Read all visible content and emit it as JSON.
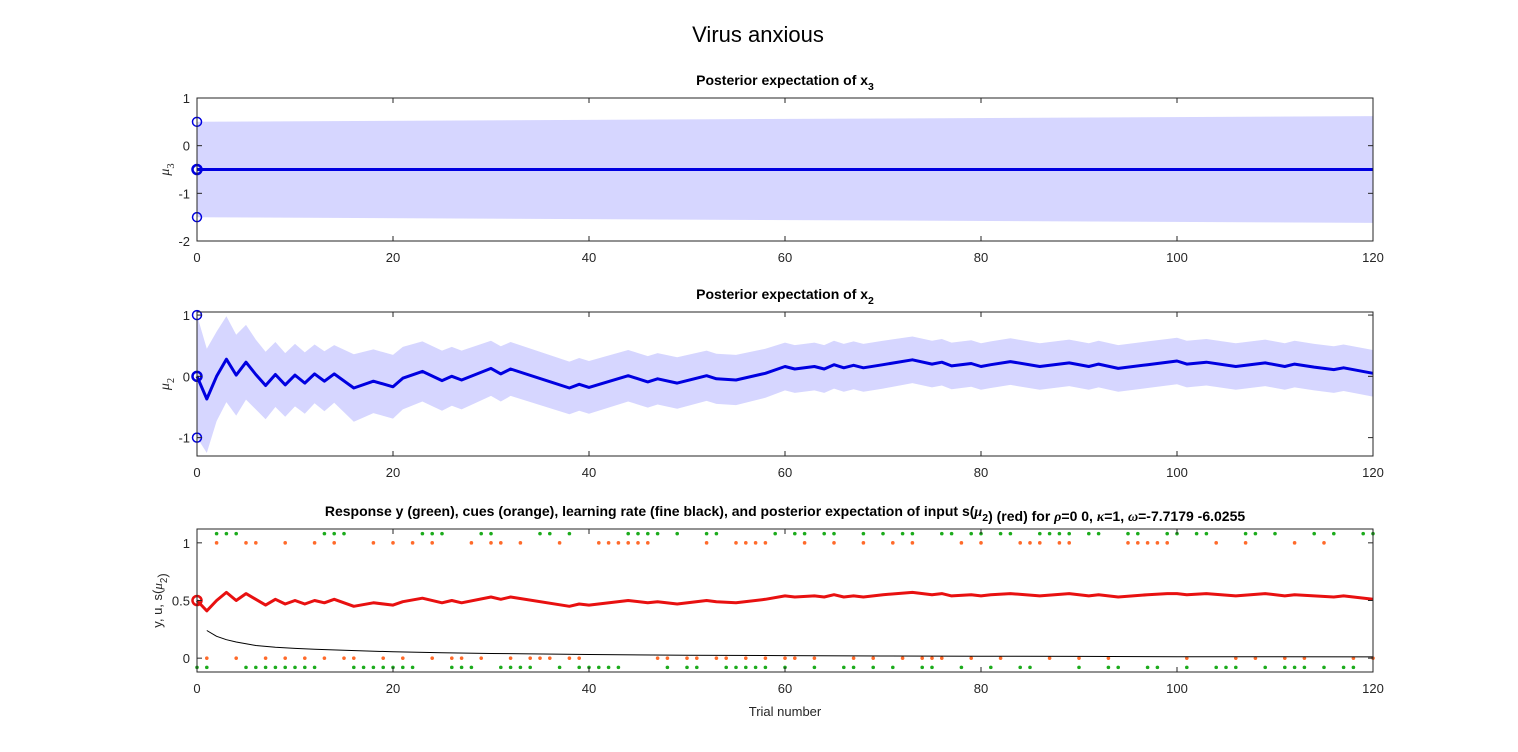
{
  "figure": {
    "title": "Virus anxious",
    "xlabel": "Trial number"
  },
  "chart_data": [
    {
      "type": "line",
      "title_main": "Posterior expectation of x",
      "title_sub": "3",
      "ylabel_main": "μ",
      "ylabel_sub": "3",
      "xlim": [
        0,
        120
      ],
      "ylim": [
        -2,
        1
      ],
      "xticks": [
        0,
        20,
        40,
        60,
        80,
        100,
        120
      ],
      "yticks": [
        1,
        0,
        -1,
        -2
      ],
      "colors": {
        "line": "#0000e0",
        "band": "#d6d6ff"
      },
      "series": [
        {
          "x": [
            0,
            120
          ],
          "values": [
            -0.5,
            -0.5
          ]
        }
      ],
      "band": {
        "x": [
          0,
          120
        ],
        "upper": [
          0.5,
          0.62
        ],
        "lower": [
          -1.5,
          -1.62
        ]
      },
      "prior_markers": [
        0.5,
        -0.5,
        -1.5
      ]
    },
    {
      "type": "line",
      "title_main": "Posterior expectation of x",
      "title_sub": "2",
      "ylabel_main": "μ",
      "ylabel_sub": "2",
      "xlim": [
        0,
        120
      ],
      "ylim": [
        -1.3,
        1.05
      ],
      "xticks": [
        0,
        20,
        40,
        60,
        80,
        100,
        120
      ],
      "yticks": [
        1,
        0,
        -1
      ],
      "colors": {
        "line": "#0000e0",
        "band": "#d6d6ff"
      },
      "series": [
        {
          "x": [
            0,
            1,
            2,
            3,
            4,
            5,
            6,
            7,
            8,
            9,
            10,
            11,
            12,
            13,
            14,
            16,
            18,
            20,
            21,
            23,
            25,
            26,
            27,
            30,
            31,
            32,
            38,
            39,
            40,
            44,
            46,
            47,
            49,
            52,
            53,
            55,
            58,
            60,
            61,
            63,
            64,
            65,
            66,
            67,
            68,
            70,
            73,
            75,
            76,
            77,
            79,
            80,
            81,
            83,
            86,
            89,
            91,
            92,
            94,
            97,
            99,
            100,
            101,
            103,
            106,
            109,
            111,
            112,
            114,
            116,
            117,
            120
          ],
          "values": [
            0.0,
            -0.37,
            0.0,
            0.28,
            0.02,
            0.23,
            0.03,
            -0.15,
            0.03,
            -0.14,
            0.02,
            -0.11,
            0.04,
            -0.08,
            0.04,
            -0.19,
            -0.08,
            -0.17,
            -0.03,
            0.08,
            -0.07,
            0.0,
            -0.06,
            0.13,
            0.04,
            0.12,
            -0.19,
            -0.13,
            -0.18,
            0.01,
            -0.09,
            -0.04,
            -0.11,
            0.01,
            -0.04,
            -0.06,
            0.05,
            0.16,
            0.12,
            0.16,
            0.12,
            0.19,
            0.14,
            0.18,
            0.14,
            0.19,
            0.27,
            0.2,
            0.23,
            0.17,
            0.21,
            0.16,
            0.19,
            0.24,
            0.16,
            0.22,
            0.16,
            0.2,
            0.13,
            0.19,
            0.23,
            0.25,
            0.2,
            0.23,
            0.16,
            0.22,
            0.16,
            0.2,
            0.15,
            0.11,
            0.14,
            0.05
          ]
        }
      ],
      "band": {
        "x": [
          0,
          1,
          2,
          3,
          4,
          5,
          6,
          7,
          8,
          9,
          10,
          11,
          12,
          13,
          14,
          16,
          18,
          20,
          21,
          23,
          25,
          26,
          27,
          30,
          31,
          32,
          38,
          39,
          40,
          44,
          46,
          47,
          49,
          52,
          53,
          55,
          58,
          60,
          61,
          63,
          64,
          65,
          66,
          67,
          68,
          70,
          73,
          75,
          76,
          77,
          79,
          80,
          81,
          83,
          86,
          89,
          91,
          92,
          94,
          97,
          99,
          100,
          101,
          103,
          106,
          109,
          111,
          112,
          114,
          116,
          117,
          120
        ],
        "upper": [
          1.0,
          0.45,
          0.73,
          0.98,
          0.68,
          0.84,
          0.6,
          0.4,
          0.56,
          0.38,
          0.53,
          0.39,
          0.52,
          0.41,
          0.51,
          0.36,
          0.44,
          0.35,
          0.48,
          0.57,
          0.42,
          0.48,
          0.42,
          0.58,
          0.49,
          0.56,
          0.24,
          0.3,
          0.25,
          0.43,
          0.33,
          0.38,
          0.31,
          0.42,
          0.37,
          0.35,
          0.45,
          0.55,
          0.51,
          0.55,
          0.51,
          0.58,
          0.53,
          0.57,
          0.53,
          0.58,
          0.65,
          0.58,
          0.61,
          0.55,
          0.59,
          0.54,
          0.57,
          0.62,
          0.54,
          0.6,
          0.54,
          0.58,
          0.51,
          0.57,
          0.61,
          0.63,
          0.58,
          0.61,
          0.54,
          0.6,
          0.54,
          0.58,
          0.53,
          0.49,
          0.52,
          0.43
        ],
        "lower": [
          -1.0,
          -1.25,
          -0.73,
          -0.42,
          -0.64,
          -0.38,
          -0.54,
          -0.7,
          -0.5,
          -0.66,
          -0.49,
          -0.61,
          -0.44,
          -0.57,
          -0.43,
          -0.74,
          -0.6,
          -0.69,
          -0.54,
          -0.41,
          -0.56,
          -0.48,
          -0.54,
          -0.32,
          -0.41,
          -0.32,
          -0.62,
          -0.56,
          -0.61,
          -0.41,
          -0.51,
          -0.46,
          -0.53,
          -0.4,
          -0.45,
          -0.47,
          -0.35,
          -0.23,
          -0.27,
          -0.23,
          -0.27,
          -0.2,
          -0.25,
          -0.21,
          -0.25,
          -0.2,
          -0.11,
          -0.18,
          -0.15,
          -0.21,
          -0.17,
          -0.22,
          -0.19,
          -0.14,
          -0.22,
          -0.16,
          -0.22,
          -0.18,
          -0.25,
          -0.19,
          -0.15,
          -0.13,
          -0.18,
          -0.15,
          -0.22,
          -0.16,
          -0.22,
          -0.18,
          -0.23,
          -0.27,
          -0.24,
          -0.33
        ]
      },
      "prior_markers": [
        1,
        0,
        -1
      ]
    },
    {
      "type": "line",
      "title_parts": [
        {
          "t": "Response y (green), cues (orange), learning rate (fine black), and posterior expectation of input s(",
          "s": "n"
        },
        {
          "t": "μ",
          "s": "i"
        },
        {
          "t": "2",
          "s": "sub"
        },
        {
          "t": ") (red) for ",
          "s": "n"
        },
        {
          "t": "ρ",
          "s": "i"
        },
        {
          "t": "=0  0, ",
          "s": "n"
        },
        {
          "t": "κ",
          "s": "i"
        },
        {
          "t": "=1, ",
          "s": "n"
        },
        {
          "t": "ω",
          "s": "i"
        },
        {
          "t": "=-7.7179     -6.0255",
          "s": "n"
        }
      ],
      "ylabel_parts": [
        {
          "t": "y, u, s(",
          "s": "n"
        },
        {
          "t": "μ",
          "s": "i"
        },
        {
          "t": "2",
          "s": "sub"
        },
        {
          "t": ")",
          "s": "n"
        }
      ],
      "xlim": [
        0,
        120
      ],
      "ylim": [
        -0.12,
        1.12
      ],
      "xticks": [
        0,
        20,
        40,
        60,
        80,
        100,
        120
      ],
      "yticks": [
        1,
        0.5,
        0
      ],
      "colors": {
        "posterior": "#e81010",
        "learning_rate": "#000000",
        "cues": "#ff6a2a",
        "response": "#1cab1c"
      },
      "series": [
        {
          "name": "posterior expectation of input s(μ2)",
          "x": [
            0,
            1,
            2,
            3,
            4,
            5,
            6,
            7,
            8,
            9,
            10,
            11,
            12,
            13,
            14,
            16,
            18,
            20,
            21,
            23,
            25,
            26,
            27,
            30,
            31,
            32,
            38,
            39,
            40,
            44,
            46,
            47,
            49,
            52,
            53,
            55,
            58,
            60,
            61,
            63,
            64,
            65,
            66,
            67,
            68,
            70,
            73,
            75,
            76,
            77,
            79,
            80,
            81,
            83,
            86,
            89,
            91,
            92,
            94,
            97,
            99,
            100,
            101,
            103,
            106,
            109,
            111,
            112,
            114,
            116,
            117,
            120
          ],
          "values": [
            0.5,
            0.41,
            0.5,
            0.57,
            0.5,
            0.56,
            0.51,
            0.46,
            0.51,
            0.47,
            0.5,
            0.47,
            0.5,
            0.48,
            0.51,
            0.45,
            0.48,
            0.46,
            0.49,
            0.52,
            0.48,
            0.5,
            0.48,
            0.53,
            0.51,
            0.53,
            0.45,
            0.47,
            0.46,
            0.5,
            0.48,
            0.49,
            0.47,
            0.5,
            0.49,
            0.48,
            0.51,
            0.54,
            0.53,
            0.54,
            0.53,
            0.55,
            0.53,
            0.54,
            0.53,
            0.55,
            0.57,
            0.55,
            0.56,
            0.54,
            0.55,
            0.54,
            0.55,
            0.56,
            0.54,
            0.56,
            0.54,
            0.55,
            0.53,
            0.55,
            0.56,
            0.56,
            0.55,
            0.56,
            0.54,
            0.56,
            0.54,
            0.55,
            0.54,
            0.53,
            0.54,
            0.51
          ]
        },
        {
          "name": "learning rate",
          "x": [
            1,
            2,
            3,
            4,
            5,
            6,
            8,
            10,
            12,
            15,
            20,
            25,
            30,
            40,
            50,
            60,
            70,
            80,
            90,
            100,
            110,
            120
          ],
          "values": [
            0.24,
            0.19,
            0.16,
            0.14,
            0.125,
            0.11,
            0.095,
            0.085,
            0.077,
            0.068,
            0.055,
            0.047,
            0.04,
            0.032,
            0.026,
            0.022,
            0.019,
            0.017,
            0.015,
            0.013,
            0.012,
            0.011
          ]
        }
      ],
      "cues_at_1": [
        2,
        5,
        6,
        9,
        12,
        14,
        18,
        20,
        22,
        24,
        28,
        30,
        31,
        33,
        37,
        41,
        42,
        43,
        44,
        45,
        46,
        52,
        55,
        56,
        57,
        58,
        62,
        65,
        68,
        71,
        73,
        78,
        80,
        84,
        85,
        86,
        88,
        89,
        95,
        96,
        97,
        98,
        99,
        104,
        107,
        112,
        115
      ],
      "cues_at_0": [
        1,
        4,
        7,
        9,
        11,
        13,
        15,
        16,
        19,
        21,
        24,
        26,
        27,
        29,
        32,
        34,
        35,
        36,
        38,
        39,
        47,
        48,
        50,
        51,
        53,
        54,
        56,
        58,
        60,
        61,
        63,
        67,
        69,
        72,
        74,
        75,
        76,
        79,
        82,
        87,
        90,
        93,
        101,
        106,
        108,
        111,
        113,
        118,
        120
      ],
      "response_at_1": [
        2,
        3,
        4,
        13,
        14,
        15,
        23,
        24,
        25,
        29,
        30,
        35,
        36,
        38,
        44,
        45,
        46,
        47,
        49,
        52,
        53,
        59,
        61,
        62,
        64,
        65,
        68,
        70,
        72,
        73,
        76,
        77,
        79,
        80,
        82,
        83,
        86,
        87,
        88,
        89,
        91,
        92,
        95,
        96,
        99,
        100,
        102,
        103,
        107,
        108,
        110,
        114,
        116,
        119,
        120
      ],
      "response_at_0": [
        0,
        1,
        5,
        6,
        7,
        8,
        9,
        10,
        11,
        12,
        16,
        17,
        18,
        19,
        20,
        21,
        22,
        26,
        27,
        28,
        31,
        32,
        33,
        34,
        37,
        39,
        40,
        41,
        42,
        43,
        48,
        50,
        51,
        54,
        55,
        56,
        57,
        58,
        60,
        63,
        66,
        67,
        69,
        71,
        74,
        75,
        78,
        81,
        84,
        85,
        90,
        93,
        94,
        97,
        98,
        101,
        104,
        105,
        106,
        109,
        111,
        112,
        113,
        115,
        117,
        118
      ]
    }
  ]
}
